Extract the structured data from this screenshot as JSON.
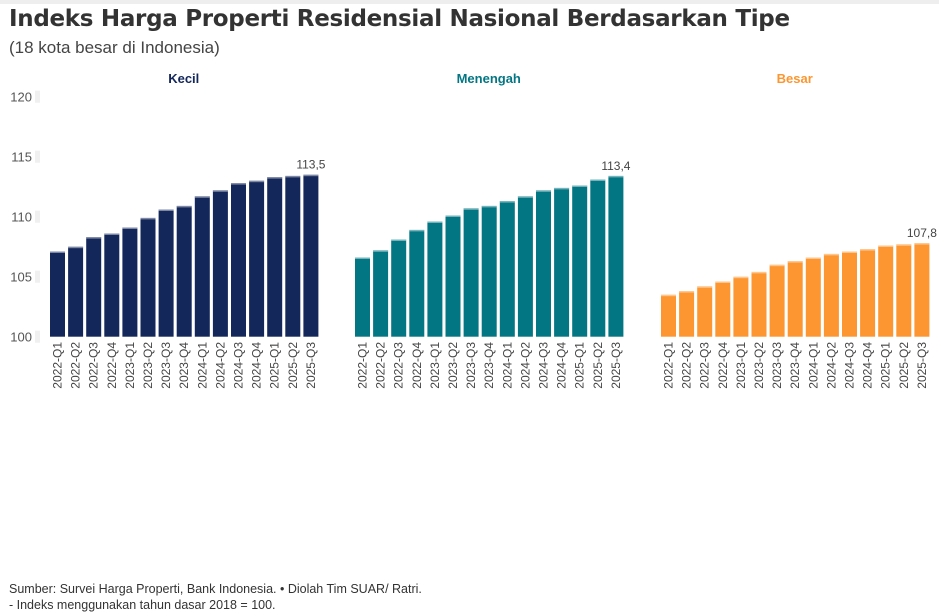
{
  "title": "Indeks Harga Properti Residensial Nasional Berdasarkan Tipe",
  "subtitle": "(18 kota besar di Indonesia)",
  "footer": {
    "source": "Sumber: Survei Harga Properti, Bank Indonesia. • Diolah Tim SUAR/ Ratri.",
    "note": "- Indeks menggunakan tahun dasar 2018 = 100."
  },
  "chart_data": [
    {
      "type": "bar",
      "title": "Kecil",
      "color": "#14275a",
      "categories": [
        "2022-Q1",
        "2022-Q2",
        "2022-Q3",
        "2022-Q4",
        "2023-Q1",
        "2023-Q2",
        "2023-Q3",
        "2023-Q4",
        "2024-Q1",
        "2024-Q2",
        "2024-Q3",
        "2024-Q4",
        "2025-Q1",
        "2025-Q2",
        "2025-Q3"
      ],
      "values": [
        107.1,
        107.5,
        108.3,
        108.6,
        109.1,
        109.9,
        110.6,
        110.9,
        111.7,
        112.2,
        112.8,
        113.0,
        113.3,
        113.4,
        113.5
      ],
      "last_label": "113,5",
      "ylim": [
        100,
        120
      ],
      "yticks": [
        100,
        105,
        110,
        115,
        120
      ],
      "grid": false
    },
    {
      "type": "bar",
      "title": "Menengah",
      "color": "#037683",
      "categories": [
        "2022-Q1",
        "2022-Q2",
        "2022-Q3",
        "2022-Q4",
        "2023-Q1",
        "2023-Q2",
        "2023-Q3",
        "2023-Q4",
        "2024-Q1",
        "2024-Q2",
        "2024-Q3",
        "2024-Q4",
        "2025-Q1",
        "2025-Q2",
        "2025-Q3"
      ],
      "values": [
        106.6,
        107.2,
        108.1,
        108.9,
        109.6,
        110.1,
        110.7,
        110.9,
        111.3,
        111.7,
        112.2,
        112.4,
        112.6,
        113.1,
        113.4
      ],
      "last_label": "113,4",
      "ylim": [
        100,
        120
      ],
      "grid": false
    },
    {
      "type": "bar",
      "title": "Besar",
      "color": "#fd9630",
      "categories": [
        "2022-Q1",
        "2022-Q2",
        "2022-Q3",
        "2022-Q4",
        "2023-Q1",
        "2023-Q2",
        "2023-Q3",
        "2023-Q4",
        "2024-Q1",
        "2024-Q2",
        "2024-Q3",
        "2024-Q4",
        "2025-Q1",
        "2025-Q2",
        "2025-Q3"
      ],
      "values": [
        103.5,
        103.8,
        104.2,
        104.6,
        105.0,
        105.4,
        106.0,
        106.3,
        106.6,
        106.9,
        107.1,
        107.3,
        107.6,
        107.7,
        107.8
      ],
      "last_label": "107,8",
      "ylim": [
        100,
        120
      ],
      "grid": false
    }
  ]
}
